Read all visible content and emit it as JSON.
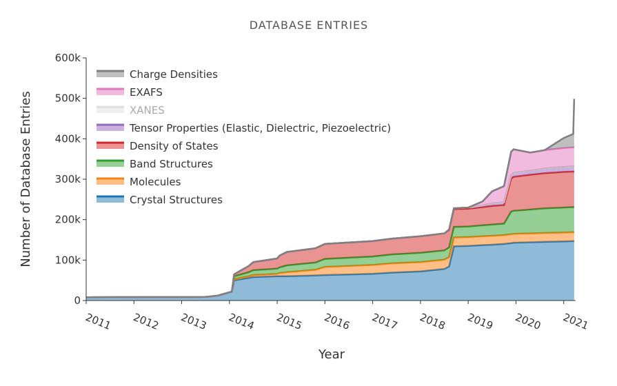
{
  "chart_data": {
    "type": "area",
    "stacked": true,
    "title": "DATABASE ENTRIES",
    "xlabel": "Year",
    "ylabel": "Number of Database Entries",
    "xlim": [
      2011.0,
      2021.25
    ],
    "ylim": [
      0,
      600000
    ],
    "y_ticks": [
      0,
      100000,
      200000,
      300000,
      400000,
      500000,
      600000
    ],
    "y_tick_labels": [
      "0",
      "100k",
      "200k",
      "300k",
      "400k",
      "500k",
      "600k"
    ],
    "x_ticks": [
      2011,
      2012,
      2013,
      2014,
      2015,
      2016,
      2017,
      2018,
      2019,
      2020,
      2021
    ],
    "x_tick_labels": [
      "2011",
      "2012",
      "2013",
      "2014",
      "2015",
      "2016",
      "2017",
      "2018",
      "2019",
      "2020",
      "2021"
    ],
    "grid": false,
    "legend_position": "top-left",
    "x": [
      2011.0,
      2013.5,
      2013.75,
      2014.05,
      2014.1,
      2014.4,
      2014.5,
      2015.0,
      2015.05,
      2015.2,
      2015.8,
      2016.0,
      2017.0,
      2017.4,
      2018.0,
      2018.5,
      2018.6,
      2018.7,
      2019.0,
      2019.3,
      2019.5,
      2019.75,
      2019.9,
      2019.95,
      2020.3,
      2020.6,
      2021.0,
      2021.2,
      2021.22
    ],
    "series": [
      {
        "name": "Crystal Structures",
        "color": "#1f77b4",
        "values": [
          8000,
          9000,
          12000,
          22000,
          50000,
          56000,
          58000,
          60000,
          60000,
          60000,
          62000,
          63000,
          66000,
          69000,
          72000,
          78000,
          84000,
          134000,
          135000,
          137000,
          138000,
          140000,
          142000,
          143000,
          144000,
          145000,
          146000,
          147000,
          147000
        ]
      },
      {
        "name": "Molecules",
        "color": "#ff7f0e",
        "values": [
          0,
          0,
          0,
          0,
          3000,
          4000,
          5000,
          6000,
          8000,
          10000,
          14000,
          20000,
          22000,
          23000,
          23000,
          23000,
          23000,
          22000,
          22000,
          22000,
          22000,
          22000,
          22000,
          22000,
          22000,
          22000,
          22000,
          22000,
          22000
        ]
      },
      {
        "name": "Band Structures",
        "color": "#2ca02c",
        "values": [
          0,
          0,
          0,
          0,
          7000,
          10000,
          12000,
          13000,
          14000,
          17000,
          18000,
          20000,
          21000,
          22000,
          23000,
          23000,
          24000,
          26000,
          26000,
          27000,
          28000,
          28000,
          56000,
          57000,
          59000,
          61000,
          62000,
          62000,
          62000
        ]
      },
      {
        "name": "Density of States",
        "color": "#d62728",
        "values": [
          0,
          0,
          0,
          0,
          5000,
          15000,
          20000,
          25000,
          29000,
          33000,
          35000,
          37000,
          38000,
          39000,
          41000,
          42000,
          43000,
          44000,
          44000,
          45000,
          46000,
          46000,
          82000,
          84000,
          86000,
          87000,
          88000,
          88000,
          88000
        ]
      },
      {
        "name": "Tensor Properties (Elastic, Dielectric, Piezoelectric)",
        "color": "#9467bd",
        "values": [
          0,
          0,
          0,
          0,
          0,
          0,
          0,
          0,
          0,
          0,
          0,
          0,
          0,
          0,
          0,
          0,
          1000,
          2000,
          3000,
          4000,
          6000,
          7000,
          8000,
          9000,
          10000,
          11000,
          12000,
          13000,
          13000
        ]
      },
      {
        "name": "XANES",
        "color": "#c7c7c7",
        "values": [
          0,
          0,
          0,
          0,
          0,
          0,
          0,
          0,
          0,
          0,
          0,
          0,
          0,
          0,
          0,
          0,
          0,
          0,
          0,
          0,
          0,
          0,
          0,
          0,
          0,
          0,
          0,
          0,
          0
        ]
      },
      {
        "name": "EXAFS",
        "color": "#e377c2",
        "values": [
          0,
          0,
          0,
          0,
          0,
          0,
          0,
          0,
          0,
          0,
          0,
          0,
          0,
          0,
          0,
          0,
          0,
          0,
          0,
          10000,
          30000,
          40000,
          58000,
          59000,
          45000,
          46000,
          47000,
          47000,
          47000
        ]
      },
      {
        "name": "Charge Densities",
        "color": "#7f7f7f",
        "values": [
          0,
          0,
          0,
          0,
          0,
          0,
          0,
          0,
          0,
          0,
          0,
          0,
          0,
          0,
          0,
          0,
          0,
          0,
          0,
          0,
          0,
          0,
          0,
          0,
          0,
          0,
          25000,
          33000,
          120000
        ]
      }
    ],
    "legend_items": [
      {
        "label": "Charge Densities",
        "color": "#7f7f7f",
        "hidden": false
      },
      {
        "label": "EXAFS",
        "color": "#e377c2",
        "hidden": false
      },
      {
        "label": "XANES",
        "color": "#c7c7c7",
        "hidden": true
      },
      {
        "label": "Tensor Properties (Elastic, Dielectric, Piezoelectric)",
        "color": "#9467bd",
        "hidden": false
      },
      {
        "label": "Density of States",
        "color": "#d62728",
        "hidden": false
      },
      {
        "label": "Band Structures",
        "color": "#2ca02c",
        "hidden": false
      },
      {
        "label": "Molecules",
        "color": "#ff7f0e",
        "hidden": false
      },
      {
        "label": "Crystal Structures",
        "color": "#1f77b4",
        "hidden": false
      }
    ]
  }
}
